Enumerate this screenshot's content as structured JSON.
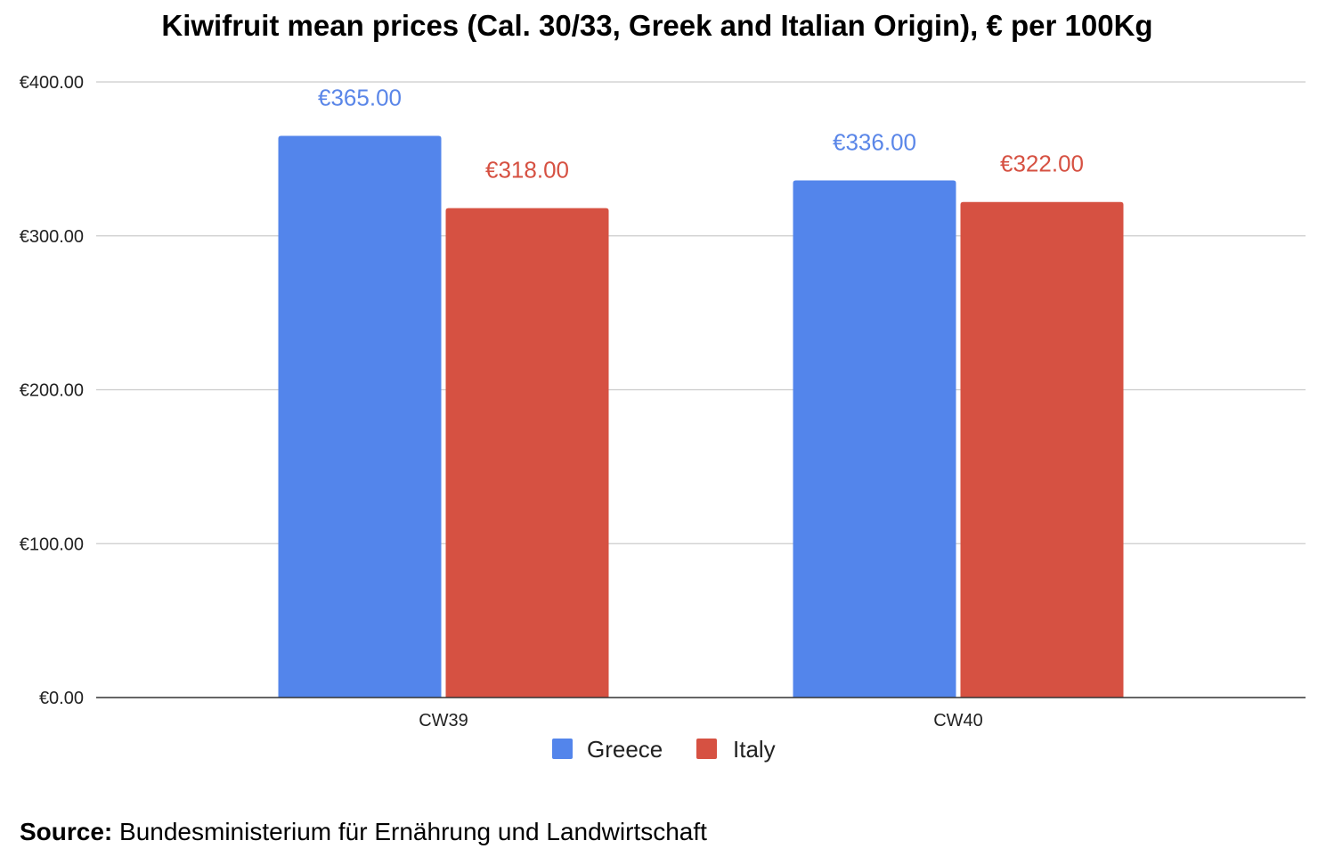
{
  "chart_data": {
    "type": "bar",
    "title": "Kiwifruit mean prices (Cal. 30/33, Greek and Italian Origin), € per 100Kg",
    "categories": [
      "CW39",
      "CW40"
    ],
    "series": [
      {
        "name": "Greece",
        "color": "#5385eb",
        "label_color": "#5a86e8",
        "values": [
          365.0,
          336.0
        ],
        "data_labels": [
          "€365.00",
          "€336.00"
        ]
      },
      {
        "name": "Italy",
        "color": "#d65142",
        "label_color": "#d65142",
        "values": [
          318.0,
          322.0
        ],
        "data_labels": [
          "€318.00",
          "€322.00"
        ]
      }
    ],
    "ylim": [
      0,
      400
    ],
    "yticks": [
      0,
      100,
      200,
      300,
      400
    ],
    "ytick_labels": [
      "€0.00",
      "€100.00",
      "€200.00",
      "€300.00",
      "€400.00"
    ],
    "xlabel": "",
    "ylabel": "",
    "grid": true,
    "legend_position": "bottom"
  },
  "source": {
    "label": "Source:",
    "text": "Bundesministerium für Ernährung und Landwirtschaft"
  }
}
